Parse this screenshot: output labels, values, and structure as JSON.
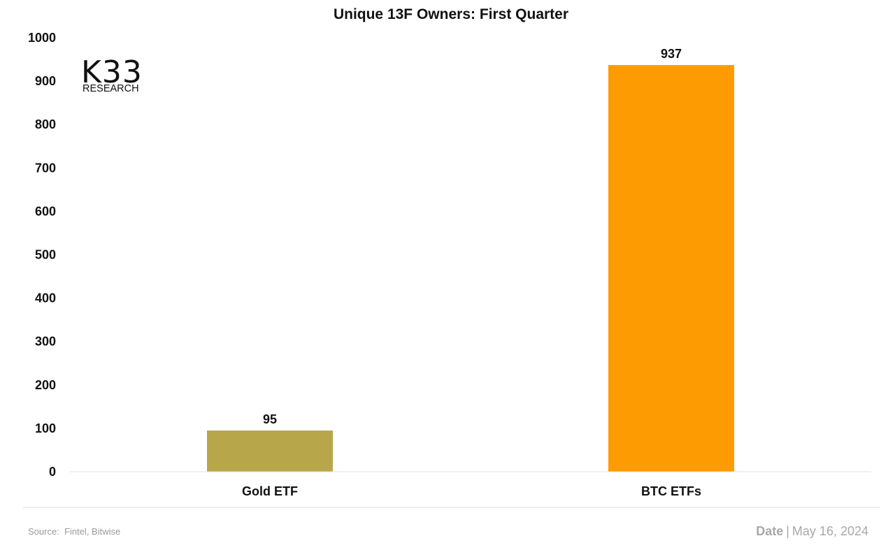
{
  "logo": {
    "main": "K33",
    "sub": "RESEARCH"
  },
  "footer": {
    "source_label": "Source:",
    "source_value": "Fintel, Bitwise",
    "date_label": "Date",
    "date_separator": "|",
    "date_value": "May 16, 2024"
  },
  "chart_data": {
    "type": "bar",
    "title": "Unique 13F Owners: First Quarter",
    "xlabel": "",
    "ylabel": "",
    "categories": [
      "Gold ETF",
      "BTC ETFs"
    ],
    "values": [
      95,
      937
    ],
    "value_labels": [
      "95",
      "937"
    ],
    "bar_colors": [
      "#b8a64b",
      "#fd9b03"
    ],
    "ylim": [
      0,
      1000
    ],
    "yticks": [
      0,
      100,
      200,
      300,
      400,
      500,
      600,
      700,
      800,
      900,
      1000
    ],
    "grid": false,
    "legend": "none"
  }
}
